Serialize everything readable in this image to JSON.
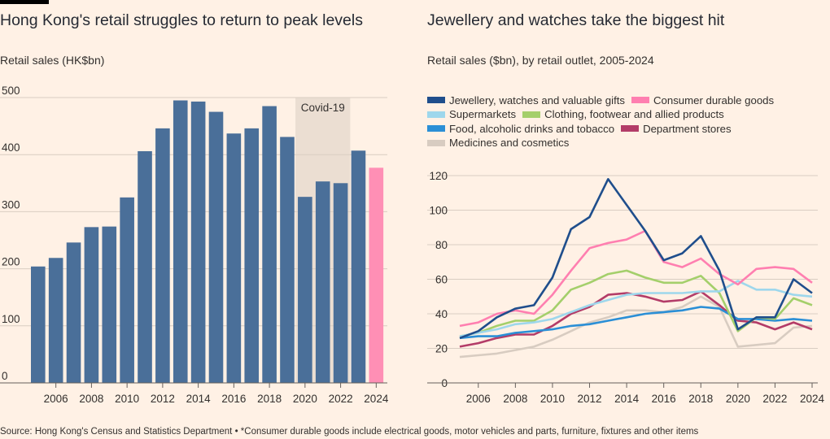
{
  "left": {
    "title": "Hong Kong's retail struggles to return to peak levels",
    "subtitle": "Retail sales (HK$bn)"
  },
  "right": {
    "title": "Jewellery and watches take the biggest hit",
    "subtitle": "Retail sales ($bn), by retail outlet, 2005-2024"
  },
  "source": "Source: Hong Kong's Census and Statistics Department • *Consumer durable goods include electrical goods, motor vehicles and parts, furniture, fixtures and other items",
  "chart_data": [
    {
      "type": "bar",
      "title": "Hong Kong's retail struggles to return to peak levels",
      "ylabel": "Retail sales (HK$bn)",
      "categories": [
        "2005",
        "2006",
        "2007",
        "2008",
        "2009",
        "2010",
        "2011",
        "2012",
        "2013",
        "2014",
        "2015",
        "2016",
        "2017",
        "2018",
        "2019",
        "2020",
        "2021",
        "2022",
        "2023",
        "2024"
      ],
      "values": [
        204,
        219,
        246,
        273,
        274,
        325,
        406,
        446,
        495,
        493,
        475,
        437,
        446,
        485,
        431,
        326,
        353,
        350,
        407,
        377
      ],
      "highlight": {
        "category": "2024",
        "color": "#ff8fb5"
      },
      "bar_color": "#4a6f99",
      "ylim": [
        0,
        500
      ],
      "yticks": [
        0,
        100,
        200,
        300,
        400,
        500
      ],
      "xtick_labels": [
        "2006",
        "2008",
        "2010",
        "2012",
        "2014",
        "2016",
        "2018",
        "2020",
        "2022",
        "2024"
      ],
      "annotation": {
        "label": "Covid-19",
        "from": "2020",
        "to": "2022"
      },
      "grid": true
    },
    {
      "type": "line",
      "title": "Jewellery and watches take the biggest hit",
      "ylabel": "Retail sales ($bn), by retail outlet, 2005-2024",
      "x": [
        2005,
        2006,
        2007,
        2008,
        2009,
        2010,
        2011,
        2012,
        2013,
        2014,
        2015,
        2016,
        2017,
        2018,
        2019,
        2020,
        2021,
        2022,
        2023,
        2024
      ],
      "ylim": [
        0,
        120
      ],
      "yticks": [
        0,
        20,
        40,
        60,
        80,
        100,
        120
      ],
      "xtick_labels": [
        "2006",
        "2008",
        "2010",
        "2012",
        "2014",
        "2016",
        "2018",
        "2020",
        "2022",
        "2024"
      ],
      "legend_position": "top",
      "grid": true,
      "series": [
        {
          "name": "Jewellery, watches and valuable gifts",
          "color": "#1f4e8c",
          "values": [
            26,
            30,
            38,
            43,
            45,
            61,
            89,
            96,
            118,
            103,
            88,
            71,
            75,
            85,
            65,
            31,
            38,
            38,
            60,
            52
          ]
        },
        {
          "name": "Consumer durable goods",
          "color": "#ff7fb0",
          "values": [
            33,
            35,
            40,
            42,
            40,
            51,
            65,
            78,
            81,
            83,
            88,
            70,
            67,
            72,
            63,
            57,
            66,
            67,
            66,
            58
          ]
        },
        {
          "name": "Supermarkets",
          "color": "#9ed7ec",
          "values": [
            27,
            29,
            31,
            34,
            35,
            37,
            41,
            45,
            48,
            51,
            52,
            52,
            52,
            53,
            53,
            59,
            54,
            54,
            51,
            50
          ]
        },
        {
          "name": "Clothing, footwear and allied products",
          "color": "#a4cf6b",
          "values": [
            27,
            29,
            33,
            36,
            36,
            42,
            54,
            58,
            63,
            65,
            61,
            58,
            58,
            62,
            52,
            30,
            38,
            37,
            49,
            45
          ]
        },
        {
          "name": "Food, alcoholic drinks and tobacco",
          "color": "#2b8fd6",
          "values": [
            26,
            27,
            27,
            29,
            30,
            31,
            33,
            34,
            36,
            38,
            40,
            41,
            42,
            44,
            43,
            37,
            37,
            36,
            37,
            36
          ]
        },
        {
          "name": "Department stores",
          "color": "#b33c68",
          "values": [
            21,
            23,
            26,
            28,
            28,
            33,
            40,
            44,
            51,
            52,
            50,
            47,
            48,
            53,
            45,
            36,
            35,
            31,
            35,
            31
          ]
        },
        {
          "name": "Medicines and cosmetics",
          "color": "#d8ccc1",
          "values": [
            15,
            16,
            17,
            19,
            21,
            25,
            30,
            35,
            38,
            42,
            42,
            41,
            44,
            50,
            44,
            21,
            22,
            23,
            32,
            33
          ]
        }
      ]
    }
  ]
}
